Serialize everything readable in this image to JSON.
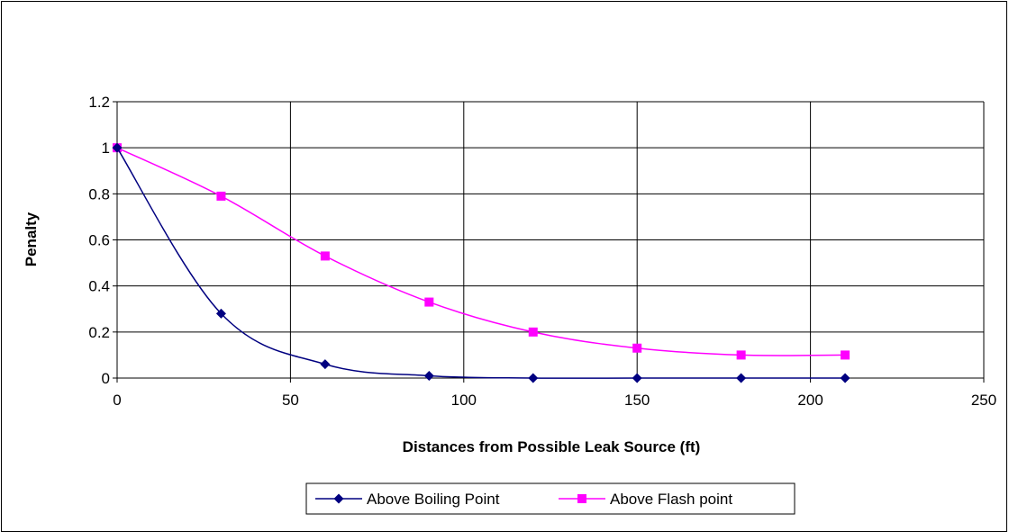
{
  "chart_data": {
    "type": "line",
    "title": "",
    "xlabel": "Distances from Possible Leak Source (ft)",
    "ylabel": "Penalty",
    "xlim": [
      0,
      250
    ],
    "ylim": [
      0,
      1.2
    ],
    "x_ticks": [
      0,
      50,
      100,
      150,
      200,
      250
    ],
    "y_ticks": [
      0,
      0.2,
      0.4,
      0.6,
      0.8,
      1,
      1.2
    ],
    "x_tick_labels": [
      "0",
      "50",
      "100",
      "150",
      "200",
      "250"
    ],
    "y_tick_labels": [
      "0",
      "0.2",
      "0.4",
      "0.6",
      "0.8",
      "1",
      "1.2"
    ],
    "grid": true,
    "legend_position": "bottom",
    "series": [
      {
        "name": "Above Boiling Point",
        "color": "#000080",
        "marker": "diamond",
        "x": [
          0,
          30,
          60,
          90,
          120,
          150,
          180,
          210
        ],
        "values": [
          1,
          0.28,
          0.06,
          0.01,
          0,
          0,
          0,
          0
        ]
      },
      {
        "name": "Above Flash point",
        "color": "#FF00FF",
        "marker": "square",
        "x": [
          0,
          30,
          60,
          90,
          120,
          150,
          180,
          210
        ],
        "values": [
          1,
          0.79,
          0.53,
          0.33,
          0.2,
          0.13,
          0.1,
          0.1
        ]
      }
    ]
  }
}
